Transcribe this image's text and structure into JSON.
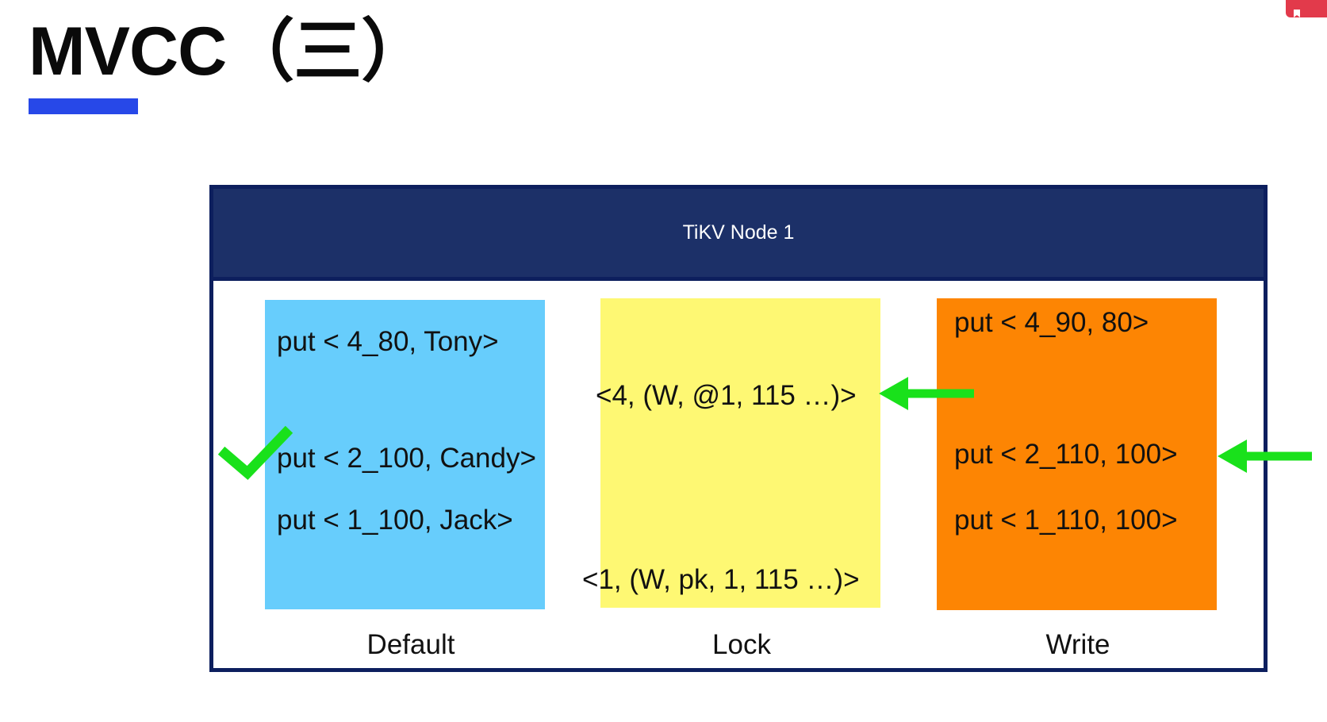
{
  "slide": {
    "title": "MVCC（三）"
  },
  "node": {
    "header": "TiKV Node 1"
  },
  "columns": {
    "default": {
      "label": "Default",
      "color": "#67cdfc",
      "entries": [
        "put < 4_80, Tony>",
        "put < 2_100, Candy>",
        "put < 1_100, Jack>"
      ]
    },
    "lock": {
      "label": "Lock",
      "color": "#fef873",
      "entries": [
        "<4, (W, @1, 115 …)>",
        "<1, (W, pk, 1, 115 …)>"
      ]
    },
    "write": {
      "label": "Write",
      "color": "#fd8503",
      "entries": [
        "put < 4_90, 80>",
        "put < 2_110, 100>",
        "put < 1_110, 100>"
      ]
    }
  },
  "markers": {
    "arrow_color": "#19e11b",
    "check_icon": "check-icon",
    "arrow_icon": "arrow-left-icon"
  }
}
